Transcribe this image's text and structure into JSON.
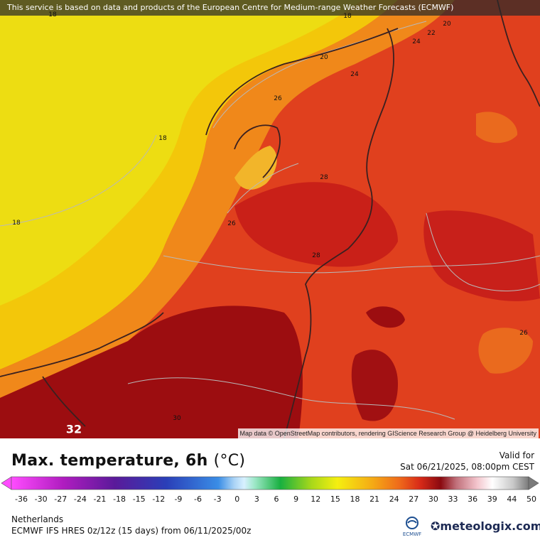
{
  "notice": "This service is based on data and products of the European Centre for Medium-range Weather Forecasts (ECMWF)",
  "attribution": "Map data © OpenStreetMap contributors, rendering GIScience Research Group @ Heidelberg University",
  "title": "Max. temperature, 6h",
  "unit": "(°C)",
  "valid_label": "Valid for",
  "valid_time": "Sat 06/21/2025, 08:00pm CEST",
  "region": "Netherlands",
  "model_run": "ECMWF IFS HRES 0z/12z (15 days) from 06/11/2025/00z",
  "ecmwf_logo_text": "ECMWF",
  "brand": "meteologix.com",
  "contour_labels": {
    "l1": "18",
    "l2": "18",
    "l3": "18",
    "l4": "18",
    "l5": "20",
    "l6": "20",
    "l7": "22",
    "l8": "24",
    "l9": "24",
    "l10": "26",
    "l11": "26",
    "l12": "26",
    "l13": "28",
    "l14": "28",
    "l15": "30",
    "l16": "32"
  },
  "colorbar": {
    "ticks": [
      "-36",
      "-30",
      "-27",
      "-24",
      "-21",
      "-18",
      "-15",
      "-12",
      "-9",
      "-6",
      "-3",
      "0",
      "3",
      "6",
      "9",
      "12",
      "15",
      "18",
      "21",
      "24",
      "27",
      "30",
      "33",
      "36",
      "39",
      "44",
      "50"
    ]
  }
}
